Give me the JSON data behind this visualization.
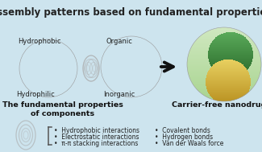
{
  "title": "Assembly patterns based on fundamental properties",
  "bg_color": "#cde4ee",
  "title_fontsize": 8.5,
  "title_fontweight": "bold",
  "label_hydrophobic": "Hydrophobic",
  "label_hydrophilic": "Hydrophilic",
  "label_organic": "Organic",
  "label_inorganic": "Inorganic",
  "label_fundamental": "The fundamental properties\nof components",
  "label_nanodrug": "Carrier-free nanodrug",
  "bullets_left": [
    "Hydrophobic interactions",
    "Electrostatic interactions",
    "π-π stacking interactions"
  ],
  "bullets_right": [
    "Covalent bonds",
    "Hydrogen bonds",
    "Van der Waals force"
  ],
  "arrow_color": "#111111",
  "text_color": "#222222",
  "label_fontsize": 6.0,
  "bullet_fontsize": 5.5,
  "sublabel_fontsize": 6.8
}
